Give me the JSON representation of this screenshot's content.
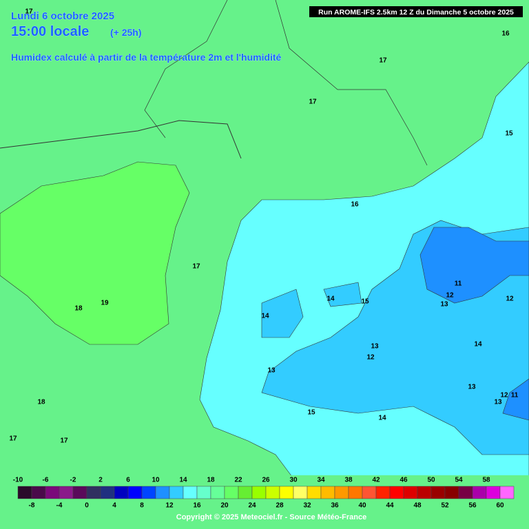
{
  "header": {
    "date": "Lundi 6 octobre 2025",
    "time": "15:00 locale",
    "lead": "(+ 25h)",
    "subtitle": "Humidex calculé à partir de la température 2m et l'humidité"
  },
  "run": "Run AROME-IFS 2.5km 12 Z du Dimanche 5 octobre 2025",
  "contour_labels": [
    17,
    16,
    17,
    17,
    15,
    16,
    17,
    11,
    12,
    12,
    14,
    15,
    13,
    19,
    18,
    14,
    14,
    13,
    12,
    13,
    13,
    12,
    11,
    13,
    18,
    15,
    14,
    17,
    17
  ],
  "scale": {
    "top": [
      -10,
      -6,
      -2,
      2,
      6,
      10,
      14,
      18,
      22,
      26,
      30,
      34,
      38,
      42,
      46,
      50,
      54,
      58
    ],
    "bottom": [
      -8,
      -4,
      0,
      4,
      8,
      12,
      16,
      20,
      24,
      28,
      32,
      36,
      40,
      44,
      48,
      52,
      56,
      60
    ],
    "colors": [
      "#2a0a2a",
      "#4a0a4a",
      "#7a0a7a",
      "#8a1a8a",
      "#5a0a5a",
      "#303060",
      "#203080",
      "#0000c0",
      "#0000ff",
      "#0044ff",
      "#1e90ff",
      "#33ccff",
      "#66ffff",
      "#66ffcc",
      "#66ff99",
      "#66ff66",
      "#66ee33",
      "#99ff00",
      "#ccff00",
      "#ffff00",
      "#ffff66",
      "#ffdd00",
      "#ffbb00",
      "#ff9900",
      "#ff7700",
      "#ff5533",
      "#ff2200",
      "#ff0000",
      "#dd0000",
      "#bb0000",
      "#990000",
      "#880000",
      "#770044",
      "#aa00aa",
      "#dd00dd",
      "#ff66ff"
    ]
  },
  "copyright": "Copyright © 2025 Meteociel.fr - Source Météo-France"
}
